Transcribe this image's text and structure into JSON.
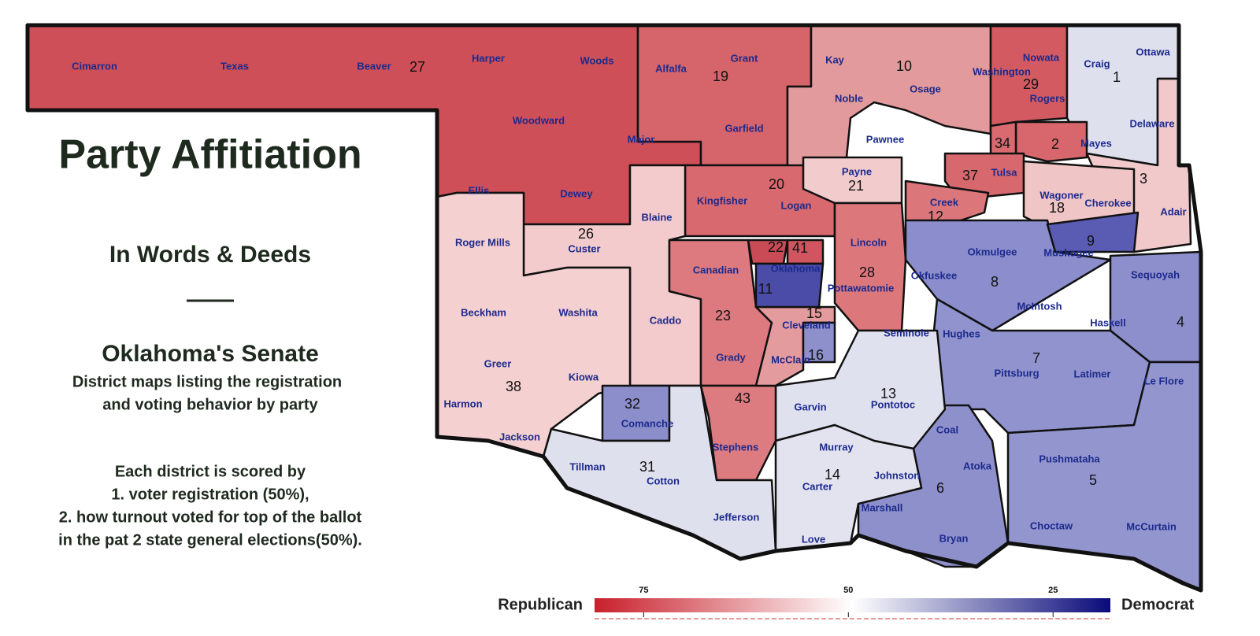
{
  "title": "Party Affitiation",
  "subtitle": "In Words & Deeds",
  "heading": "Oklahoma's Senate",
  "description": [
    "District maps listing the registration",
    "and voting behavior by party"
  ],
  "scoring": [
    "Each district is scored by",
    "1. voter registration (50%),",
    "2. how turnout voted for top of the ballot",
    "in the pat 2 state general elections(50%)."
  ],
  "legend": {
    "left": "Republican",
    "right": "Democrat",
    "range": [
      81,
      18
    ],
    "ticks": [
      75,
      50,
      25
    ]
  },
  "districts": [
    {
      "number": "27",
      "color": "#cf4f58"
    },
    {
      "number": "19",
      "color": "#d5646b"
    },
    {
      "number": "10",
      "color": "#e39a9c"
    },
    {
      "number": "29",
      "color": "#d45a62"
    },
    {
      "number": "1",
      "color": "#dfe0ee"
    },
    {
      "number": "3",
      "color": "#f1c9ca"
    },
    {
      "number": "2",
      "color": "#d8676d"
    },
    {
      "number": "34",
      "color": "#d86a70"
    },
    {
      "number": "37",
      "color": "#d7686e"
    },
    {
      "number": "20",
      "color": "#d8696f"
    },
    {
      "number": "21",
      "color": "#f2cbcc"
    },
    {
      "number": "12",
      "color": "#db767b"
    },
    {
      "number": "18",
      "color": "#f0c5c6"
    },
    {
      "number": "28",
      "color": "#dc777c"
    },
    {
      "number": "8",
      "color": "#8b8dcc"
    },
    {
      "number": "9",
      "color": "#5a5bb3"
    },
    {
      "number": "4",
      "color": "#8d8fcc"
    },
    {
      "number": "7",
      "color": "#9193ce"
    },
    {
      "number": "5",
      "color": "#9395cf"
    },
    {
      "number": "6",
      "color": "#8e90cc"
    },
    {
      "number": "13",
      "color": "#e0e1ef"
    },
    {
      "number": "14",
      "color": "#e3e3f0"
    },
    {
      "number": "26",
      "color": "#f3cbcc"
    },
    {
      "number": "38",
      "color": "#f4d0d1"
    },
    {
      "number": "23",
      "color": "#dc7a7f"
    },
    {
      "number": "43",
      "color": "#dc7b80"
    },
    {
      "number": "15",
      "color": "#e49b9e"
    },
    {
      "number": "16",
      "color": "#8e90cc"
    },
    {
      "number": "32",
      "color": "#8c8ecb"
    },
    {
      "number": "31",
      "color": "#dfe0ee"
    },
    {
      "number": "22",
      "color": "#c94b56"
    },
    {
      "number": "41",
      "color": "#d05560"
    },
    {
      "number": "11",
      "color": "#4b4ca8"
    }
  ],
  "counties": [
    "Cimarron",
    "Texas",
    "Beaver",
    "Harper",
    "Woods",
    "Alfalfa",
    "Grant",
    "Kay",
    "Osage",
    "Washington",
    "Nowata",
    "Craig",
    "Ottawa",
    "Woodward",
    "Major",
    "Garfield",
    "Noble",
    "Pawnee",
    "Rogers",
    "Delaware",
    "Mayes",
    "Ellis",
    "Dewey",
    "Blaine",
    "Kingfisher",
    "Logan",
    "Payne",
    "Tulsa",
    "Creek",
    "Wagoner",
    "Cherokee",
    "Adair",
    "Roger Mills",
    "Custer",
    "Lincoln",
    "Okmulgee",
    "Muskogee",
    "Canadian",
    "Oklahoma",
    "Okfuskee",
    "Pottawatomie",
    "Sequoyah",
    "Beckham",
    "Washita",
    "Caddo",
    "McIntosh",
    "Cleveland",
    "Haskell",
    "Seminole",
    "Hughes",
    "Grady",
    "McClain",
    "Pittsburg",
    "Latimer",
    "Le Flore",
    "Greer",
    "Kiowa",
    "Harmon",
    "Garvin",
    "Pontotoc",
    "Comanche",
    "Jackson",
    "Coal",
    "Murray",
    "Stephens",
    "Tillman",
    "Cotton",
    "Atoka",
    "Pushmataha",
    "Johnston",
    "Carter",
    "Marshall",
    "Jefferson",
    "Choctaw",
    "McCurtain",
    "Love",
    "Bryan"
  ]
}
